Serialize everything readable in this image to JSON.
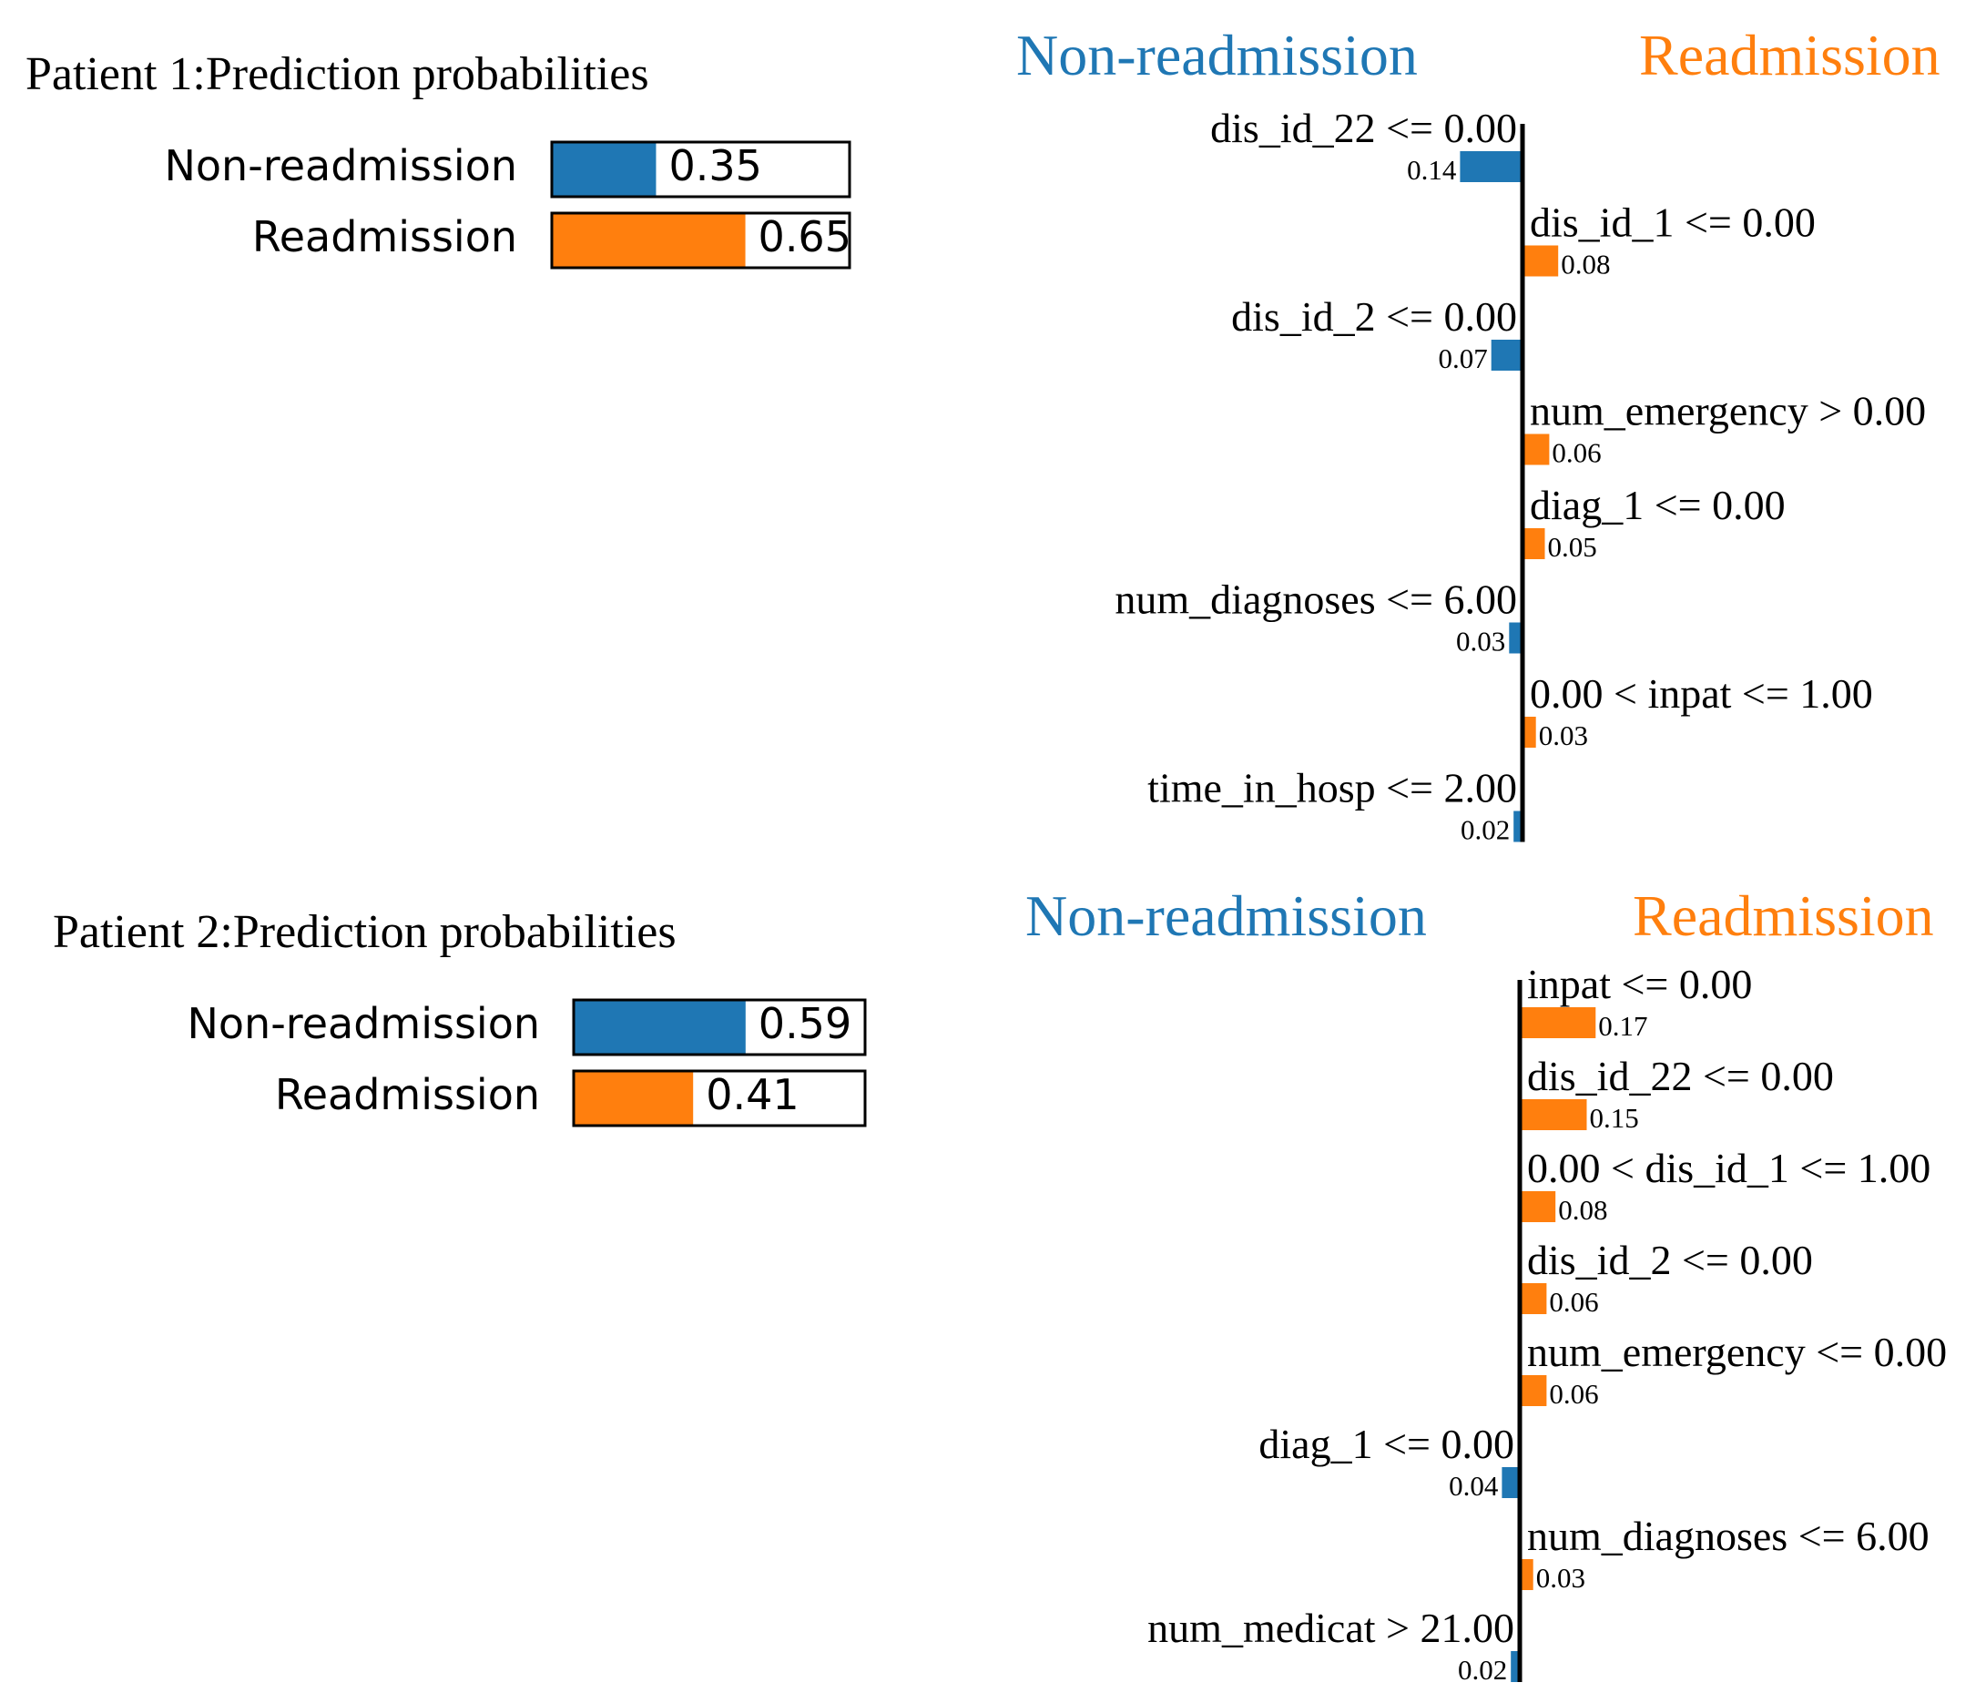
{
  "colors": {
    "negative": "#1f77b4",
    "positive": "#ff7f0e",
    "axis": "#000000"
  },
  "chart_data": [
    {
      "type": "bar",
      "title": "Patient 1:Prediction probabilities",
      "categories": [
        "Non-readmission",
        "Readmission"
      ],
      "values": [
        0.35,
        0.65
      ],
      "labels": [
        "0.35",
        "0.65"
      ],
      "xlim": [
        0,
        1
      ]
    },
    {
      "type": "bar",
      "orientation": "horizontal",
      "left_label": "Non-readmission",
      "right_label": "Readmission",
      "features": [
        {
          "name": "dis_id_22 <= 0.00",
          "weight": -0.14,
          "label": "0.14"
        },
        {
          "name": "dis_id_1 <= 0.00",
          "weight": 0.08,
          "label": "0.08"
        },
        {
          "name": "dis_id_2 <= 0.00",
          "weight": -0.07,
          "label": "0.07"
        },
        {
          "name": "num_emergency > 0.00",
          "weight": 0.06,
          "label": "0.06"
        },
        {
          "name": "diag_1 <= 0.00",
          "weight": 0.05,
          "label": "0.05"
        },
        {
          "name": "num_diagnoses <= 6.00",
          "weight": -0.03,
          "label": "0.03"
        },
        {
          "name": "0.00 < inpat <= 1.00",
          "weight": 0.03,
          "label": "0.03"
        },
        {
          "name": "time_in_hosp <= 2.00",
          "weight": -0.02,
          "label": "0.02"
        }
      ]
    },
    {
      "type": "bar",
      "title": "Patient 2:Prediction probabilities",
      "categories": [
        "Non-readmission",
        "Readmission"
      ],
      "values": [
        0.59,
        0.41
      ],
      "labels": [
        "0.59",
        "0.41"
      ],
      "xlim": [
        0,
        1
      ]
    },
    {
      "type": "bar",
      "orientation": "horizontal",
      "left_label": "Non-readmission",
      "right_label": "Readmission",
      "features": [
        {
          "name": "inpat <= 0.00",
          "weight": 0.17,
          "label": "0.17"
        },
        {
          "name": "dis_id_22 <= 0.00",
          "weight": 0.15,
          "label": "0.15"
        },
        {
          "name": "0.00 < dis_id_1 <= 1.00",
          "weight": 0.08,
          "label": "0.08"
        },
        {
          "name": "dis_id_2 <= 0.00",
          "weight": 0.06,
          "label": "0.06"
        },
        {
          "name": "num_emergency <= 0.00",
          "weight": 0.06,
          "label": "0.06"
        },
        {
          "name": "diag_1 <= 0.00",
          "weight": -0.04,
          "label": "0.04"
        },
        {
          "name": "num_diagnoses <= 6.00",
          "weight": 0.03,
          "label": "0.03"
        },
        {
          "name": "num_medicat > 21.00",
          "weight": -0.02,
          "label": "0.02"
        }
      ]
    }
  ]
}
